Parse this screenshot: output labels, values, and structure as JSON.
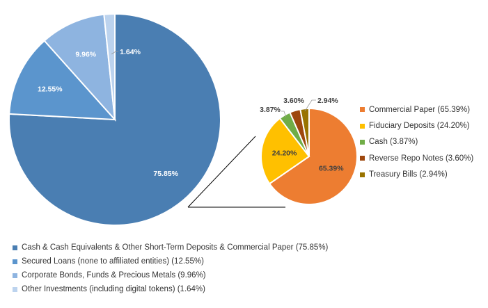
{
  "chart_data": [
    {
      "type": "pie",
      "slices": [
        {
          "label": "Cash & Cash Equivalents & Other Short-Term Deposits & Commercial Paper (75.85%)",
          "value": 75.85,
          "data_label": "75.85%",
          "color": "#4a7eb2"
        },
        {
          "label": "Secured Loans (none to affiliated entities) (12.55%)",
          "value": 12.55,
          "data_label": "12.55%",
          "color": "#5b95cd"
        },
        {
          "label": "Corporate Bonds, Funds & Precious Metals (9.96%)",
          "value": 9.96,
          "data_label": "9.96%",
          "color": "#8eb4e0"
        },
        {
          "label": "Other Investments (including digital tokens) (1.64%)",
          "value": 1.64,
          "data_label": "1.64%",
          "color": "#bcd3ee"
        }
      ],
      "legend_position": "bottom-left"
    },
    {
      "type": "pie",
      "slices": [
        {
          "label": "Commercial Paper (65.39%)",
          "value": 65.39,
          "data_label": "65.39%",
          "color": "#ed7d31"
        },
        {
          "label": "Fiduciary Deposits (24.20%)",
          "value": 24.2,
          "data_label": "24.20%",
          "color": "#ffc000"
        },
        {
          "label": "Cash (3.87%)",
          "value": 3.87,
          "data_label": "3.87%",
          "color": "#70ad47"
        },
        {
          "label": "Reverse Repo Notes (3.60%)",
          "value": 3.6,
          "data_label": "3.60%",
          "color": "#9e480e"
        },
        {
          "label": "Treasury Bills (2.94%)",
          "value": 2.94,
          "data_label": "2.94%",
          "color": "#997300"
        }
      ],
      "legend_position": "right"
    }
  ]
}
